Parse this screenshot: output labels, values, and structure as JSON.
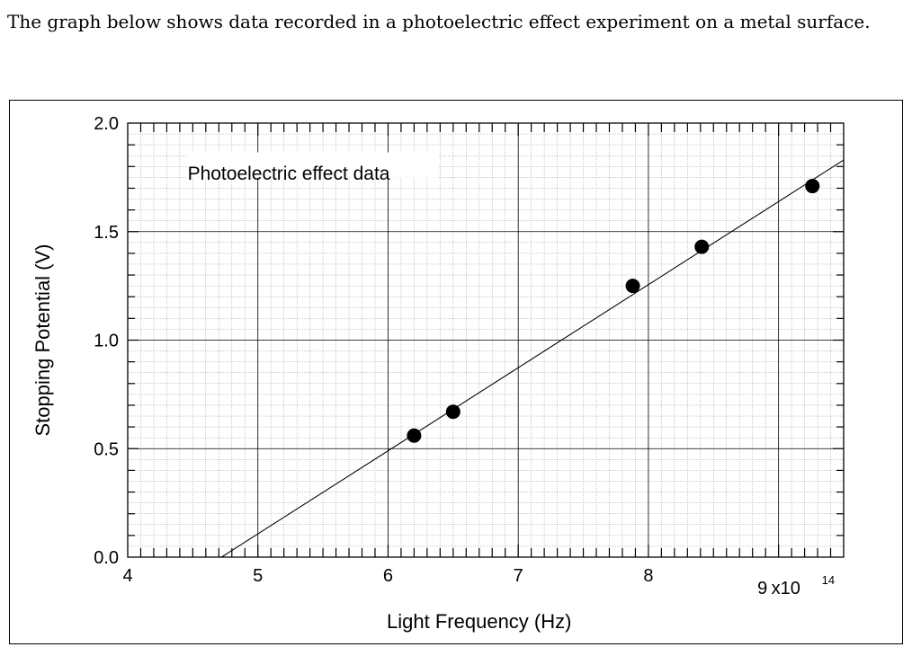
{
  "intro_text": "The graph below shows data recorded in a photoelectric effect experiment on a metal surface.",
  "chart_data": {
    "type": "scatter",
    "title": "Photoelectric effect data",
    "xlabel": "Light Frequency (Hz)",
    "ylabel": "Stopping Potential (V)",
    "x_scale_label": "x10",
    "x_scale_exponent": "14",
    "xlim": [
      4,
      9.5
    ],
    "ylim": [
      0,
      2
    ],
    "x_ticks": [
      "4",
      "5",
      "6",
      "7",
      "8",
      "9"
    ],
    "y_ticks": [
      "0.0",
      "0.5",
      "1.0",
      "1.5",
      "2.0"
    ],
    "grid": true,
    "points": [
      {
        "x": 6.2,
        "y": 0.56
      },
      {
        "x": 6.5,
        "y": 0.67
      },
      {
        "x": 7.88,
        "y": 1.25
      },
      {
        "x": 8.41,
        "y": 1.43
      },
      {
        "x": 9.26,
        "y": 1.71
      }
    ],
    "fit_line": {
      "x": [
        4.72,
        9.5
      ],
      "y": [
        0.0,
        1.83
      ]
    }
  }
}
